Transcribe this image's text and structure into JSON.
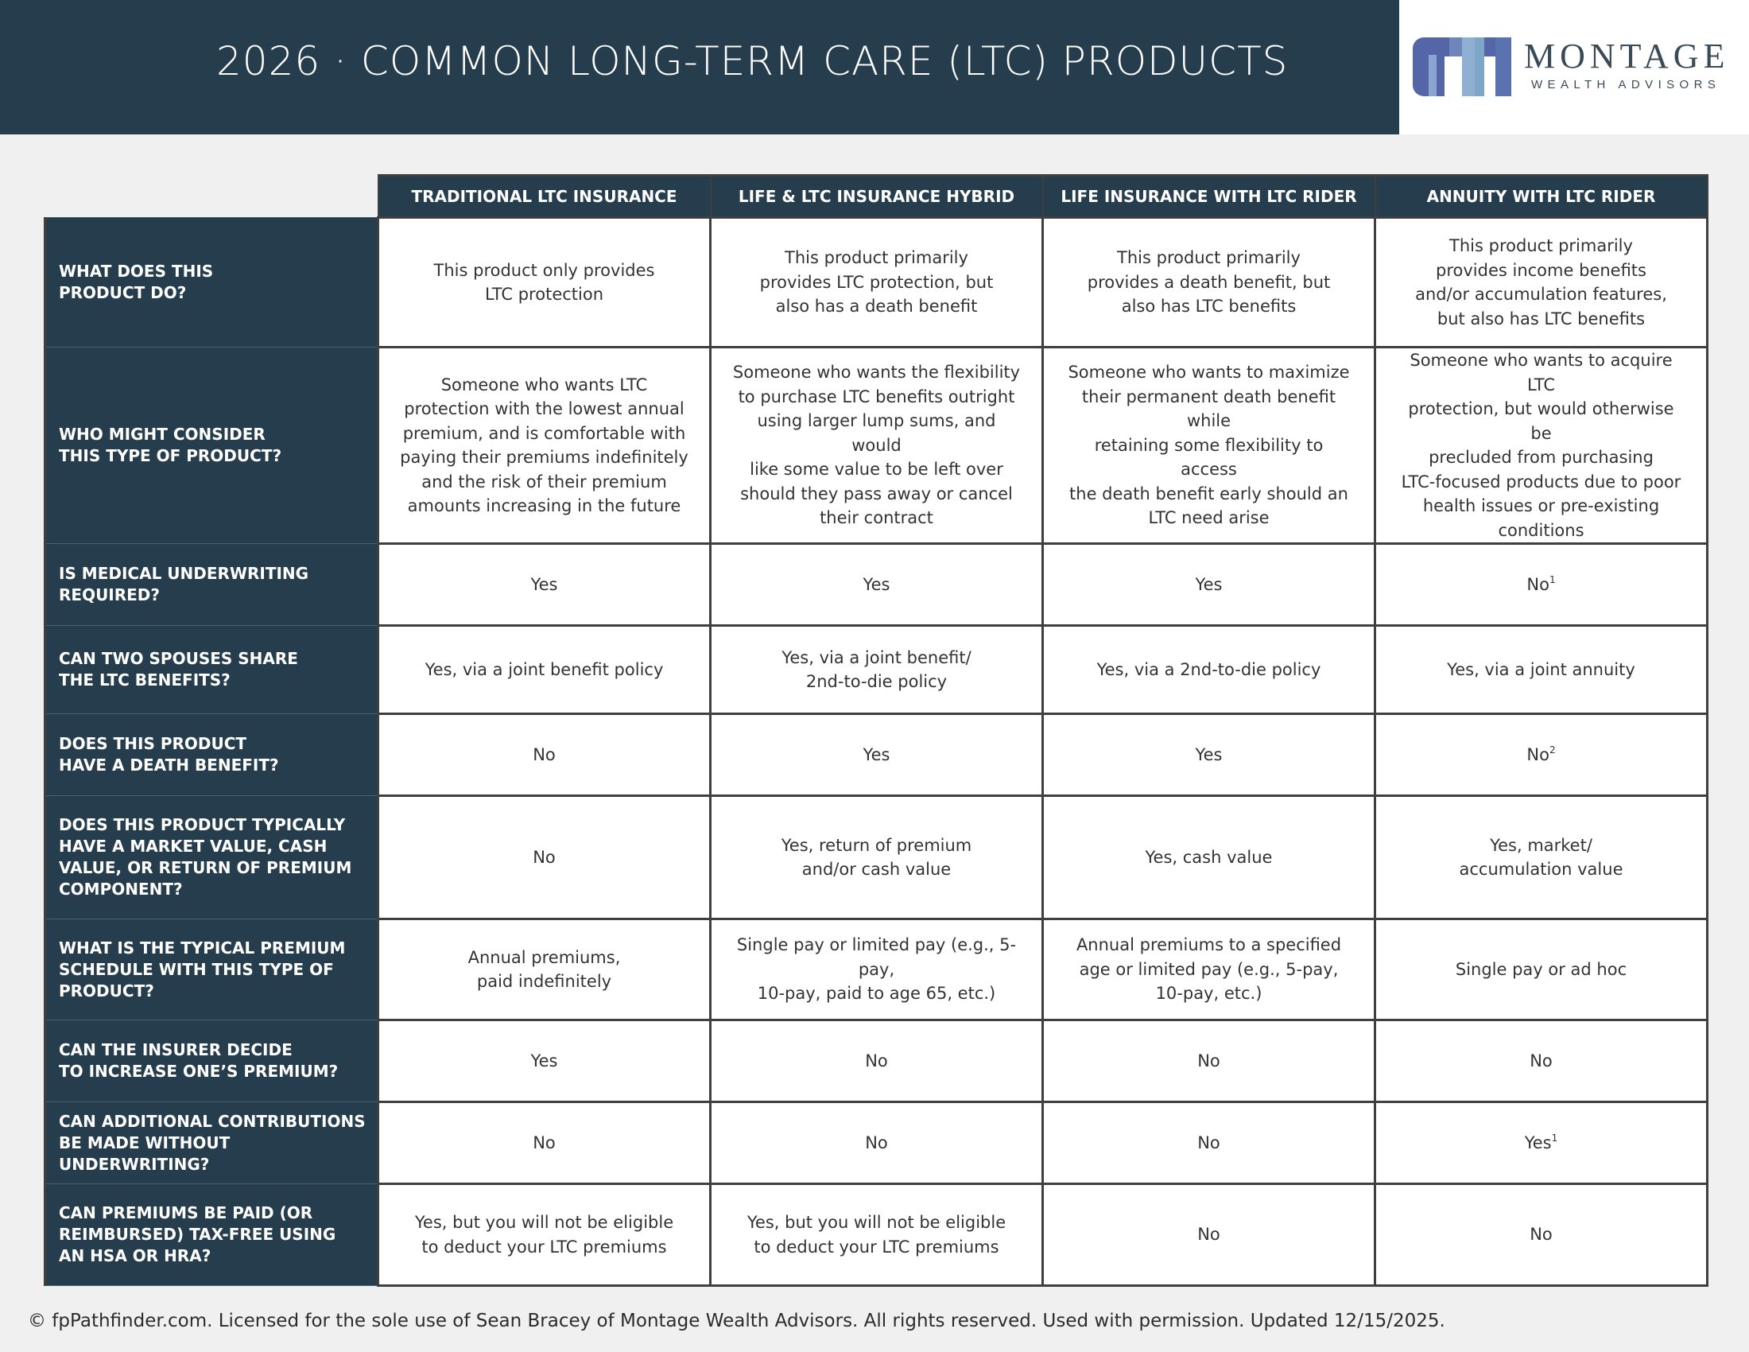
{
  "header": {
    "title": "2026 · COMMON LONG-TERM CARE (LTC) PRODUCTS",
    "logo_word": "MONTAGE",
    "logo_sub": "WEALTH ADVISORS"
  },
  "table": {
    "columns": [
      "TRADITIONAL LTC INSURANCE",
      "LIFE & LTC INSURANCE HYBRID",
      "LIFE INSURANCE WITH LTC RIDER",
      "ANNUITY WITH LTC RIDER"
    ],
    "rows": [
      {
        "question": "WHAT DOES THIS\nPRODUCT DO?",
        "cells": [
          {
            "text": "This product only provides\nLTC protection"
          },
          {
            "text": "This product primarily\nprovides LTC protection, but\nalso has a death benefit"
          },
          {
            "text": "This product primarily\nprovides a death benefit, but\nalso has LTC benefits"
          },
          {
            "text": "This product primarily\nprovides income benefits\nand/or accumulation features,\nbut also has LTC benefits"
          }
        ]
      },
      {
        "question": "WHO MIGHT CONSIDER\nTHIS TYPE OF PRODUCT?",
        "cells": [
          {
            "text": "Someone who wants LTC\nprotection with the lowest annual\npremium, and is comfortable with\npaying their premiums indefinitely\nand the risk of their premium\namounts increasing in the future"
          },
          {
            "text": "Someone who wants the flexibility\nto purchase LTC benefits outright\nusing larger lump sums, and would\nlike some value to be left over\nshould they pass away or cancel\ntheir contract"
          },
          {
            "text": "Someone who wants to maximize\ntheir permanent death benefit while\nretaining some flexibility to access\nthe death benefit early should an\nLTC need arise"
          },
          {
            "text": "Someone who wants to acquire LTC\nprotection, but would otherwise be\nprecluded from purchasing\nLTC-focused products due to poor\nhealth issues or pre-existing\nconditions"
          }
        ]
      },
      {
        "question": "IS MEDICAL UNDERWRITING\nREQUIRED?",
        "cells": [
          {
            "text": "Yes"
          },
          {
            "text": "Yes"
          },
          {
            "text": "Yes"
          },
          {
            "text": "No",
            "sup": "1"
          }
        ]
      },
      {
        "question": "CAN TWO SPOUSES SHARE\nTHE LTC BENEFITS?",
        "cells": [
          {
            "text": "Yes, via a joint benefit policy"
          },
          {
            "text": "Yes, via a joint benefit/\n2nd-to-die policy"
          },
          {
            "text": "Yes, via a 2nd-to-die policy"
          },
          {
            "text": "Yes, via a joint annuity"
          }
        ]
      },
      {
        "question": "DOES THIS PRODUCT\nHAVE A DEATH BENEFIT?",
        "cells": [
          {
            "text": "No"
          },
          {
            "text": "Yes"
          },
          {
            "text": "Yes"
          },
          {
            "text": "No",
            "sup": "2"
          }
        ]
      },
      {
        "question": "DOES THIS PRODUCT TYPICALLY\nHAVE A MARKET VALUE, CASH\nVALUE, OR RETURN OF PREMIUM\nCOMPONENT?",
        "cells": [
          {
            "text": "No"
          },
          {
            "text": "Yes, return of premium\nand/or cash value"
          },
          {
            "text": "Yes, cash value"
          },
          {
            "text": "Yes, market/\naccumulation value"
          }
        ]
      },
      {
        "question": "WHAT IS THE TYPICAL PREMIUM\nSCHEDULE WITH THIS TYPE OF\nPRODUCT?",
        "cells": [
          {
            "text": "Annual premiums,\npaid indefinitely"
          },
          {
            "text": "Single pay or limited pay (e.g., 5-pay,\n10-pay, paid to age 65, etc.)"
          },
          {
            "text": "Annual premiums to a specified\nage or limited pay (e.g., 5-pay,\n10-pay, etc.)"
          },
          {
            "text": "Single pay or ad hoc"
          }
        ]
      },
      {
        "question": "CAN THE INSURER DECIDE\nTO INCREASE ONE’S PREMIUM?",
        "cells": [
          {
            "text": "Yes"
          },
          {
            "text": "No"
          },
          {
            "text": "No"
          },
          {
            "text": "No"
          }
        ]
      },
      {
        "question": "CAN ADDITIONAL CONTRIBUTIONS\nBE MADE WITHOUT UNDERWRITING?",
        "cells": [
          {
            "text": "No"
          },
          {
            "text": "No"
          },
          {
            "text": "No"
          },
          {
            "text": "Yes",
            "sup": "1"
          }
        ]
      },
      {
        "question": "CAN PREMIUMS BE PAID (OR\nREIMBURSED) TAX-FREE USING\nAN HSA OR HRA?",
        "cells": [
          {
            "text": "Yes, but you will not be eligible\nto deduct your LTC premiums"
          },
          {
            "text": "Yes, but you will not be eligible\nto deduct your LTC premiums"
          },
          {
            "text": "No"
          },
          {
            "text": "No"
          }
        ]
      }
    ]
  },
  "footer": {
    "text": "© fpPathfinder.com. Licensed for the sole use of Sean Bracey of Montage Wealth Advisors. All rights reserved. Used with permission. Updated 12/15/2025."
  },
  "colors": {
    "header_navy": "#253d4c",
    "background": "#f0f0f0",
    "border": "#3f3f3f",
    "logo_blue": "#5566a8",
    "logo_light_blue": "#7ea6c9"
  }
}
